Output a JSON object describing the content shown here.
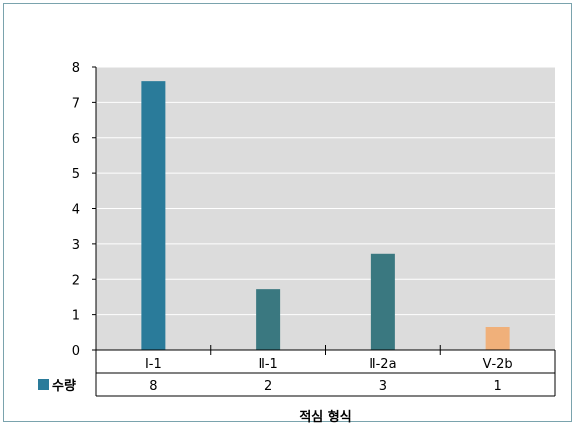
{
  "chart_data": {
    "type": "bar",
    "categories": [
      "Ⅰ-1",
      "Ⅱ-1",
      "Ⅱ-2a",
      "Ⅴ-2b"
    ],
    "series": [
      {
        "name": "수량",
        "values": [
          8,
          2,
          3,
          1
        ]
      }
    ],
    "plotted_heights": [
      7.6,
      1.72,
      2.72,
      0.65
    ],
    "xlabel": "적심 형식",
    "ylabel": "",
    "ylim": [
      0,
      8
    ],
    "yticks": [
      "0",
      "1",
      "2",
      "3",
      "4",
      "5",
      "6",
      "7",
      "8"
    ],
    "grid": true,
    "legend": "data-table-left",
    "bar_colors": [
      "#2a7b9a",
      "#3a7880",
      "#3a7880",
      "#f0b07a"
    ],
    "legend_color": "#2a7b9a",
    "plot_background": "#dcdcdc"
  }
}
